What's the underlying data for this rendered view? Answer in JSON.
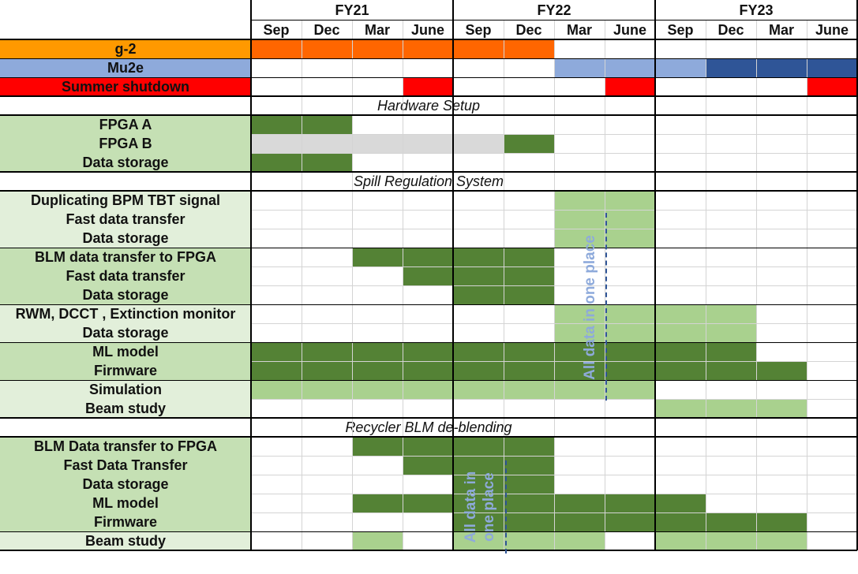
{
  "colors": {
    "orange": "#ff6600",
    "orange_label": "#ff9900",
    "mu2e_light": "#8eaadb",
    "mu2e_dark": "#2f5597",
    "red": "#ff0000",
    "green_dark": "#548235",
    "green_light": "#a9d18e",
    "gray": "#d9d9d9",
    "label_green_mid": "#c5e0b4",
    "label_green_pale": "#e2efda",
    "annotation_text": "#8eaadb"
  },
  "header": {
    "years": [
      "FY21",
      "FY22",
      "FY23"
    ],
    "months": [
      "Sep",
      "Dec",
      "Mar",
      "June",
      "Sep",
      "Dec",
      "Mar",
      "June",
      "Sep",
      "Dec",
      "Mar",
      "June"
    ]
  },
  "rows": [
    {
      "type": "task",
      "label": "g-2",
      "label_color": "orange_label",
      "cells": [
        "orange",
        "orange",
        "orange",
        "orange",
        "orange",
        "orange",
        "",
        "",
        "",
        "",
        "",
        ""
      ]
    },
    {
      "type": "task",
      "label": "Mu2e",
      "label_color": "mu2e_light",
      "cells": [
        "",
        "",
        "",
        "",
        "",
        "",
        "mu2e_light",
        "mu2e_light",
        "mu2e_light",
        "mu2e_dark",
        "mu2e_dark",
        "mu2e_dark"
      ]
    },
    {
      "type": "task",
      "label": "Summer shutdown",
      "label_color": "red",
      "cells": [
        "",
        "",
        "",
        "red",
        "",
        "",
        "",
        "red",
        "",
        "",
        "",
        "red"
      ]
    },
    {
      "type": "section",
      "label": "Hardware Setup"
    },
    {
      "type": "task",
      "label": "FPGA A",
      "label_color": "label_green_mid",
      "cells": [
        "green_dark",
        "green_dark",
        "",
        "",
        "",
        "",
        "",
        "",
        "",
        "",
        "",
        ""
      ]
    },
    {
      "type": "task",
      "label": "FPGA B",
      "label_color": "label_green_mid",
      "cells": [
        "gray",
        "gray",
        "gray",
        "gray",
        "gray",
        "green_dark",
        "",
        "",
        "",
        "",
        "",
        ""
      ]
    },
    {
      "type": "task",
      "label": "Data storage",
      "label_color": "label_green_mid",
      "cells": [
        "green_dark",
        "green_dark",
        "",
        "",
        "",
        "",
        "",
        "",
        "",
        "",
        "",
        ""
      ]
    },
    {
      "type": "section",
      "label": "Spill Regulation System"
    },
    {
      "type": "task",
      "label": "Duplicating BPM TBT signal",
      "label_color": "label_green_pale",
      "cells": [
        "",
        "",
        "",
        "",
        "",
        "",
        "green_light",
        "green_light",
        "",
        "",
        "",
        ""
      ]
    },
    {
      "type": "task",
      "label": "Fast data transfer",
      "label_color": "label_green_pale",
      "cells": [
        "",
        "",
        "",
        "",
        "",
        "",
        "green_light",
        "green_light",
        "",
        "",
        "",
        ""
      ]
    },
    {
      "type": "task",
      "label": "Data storage",
      "label_color": "label_green_pale",
      "cells": [
        "",
        "",
        "",
        "",
        "",
        "",
        "green_light",
        "green_light",
        "",
        "",
        "",
        ""
      ]
    },
    {
      "type": "task",
      "label": "BLM data transfer to FPGA",
      "label_color": "label_green_mid",
      "cells": [
        "",
        "",
        "green_dark",
        "green_dark",
        "green_dark",
        "green_dark",
        "",
        "",
        "",
        "",
        "",
        ""
      ]
    },
    {
      "type": "task",
      "label": "Fast data transfer",
      "label_color": "label_green_mid",
      "cells": [
        "",
        "",
        "",
        "green_dark",
        "green_dark",
        "green_dark",
        "",
        "",
        "",
        "",
        "",
        ""
      ]
    },
    {
      "type": "task",
      "label": "Data storage",
      "label_color": "label_green_mid",
      "cells": [
        "",
        "",
        "",
        "",
        "green_dark",
        "green_dark",
        "",
        "",
        "",
        "",
        "",
        ""
      ]
    },
    {
      "type": "task",
      "label": "RWM, DCCT , Extinction monitor",
      "label_color": "label_green_pale",
      "cells": [
        "",
        "",
        "",
        "",
        "",
        "",
        "green_light",
        "green_light",
        "green_light",
        "green_light",
        "",
        ""
      ]
    },
    {
      "type": "task",
      "label": "Data storage",
      "label_color": "label_green_pale",
      "cells": [
        "",
        "",
        "",
        "",
        "",
        "",
        "green_light",
        "green_light",
        "green_light",
        "green_light",
        "",
        ""
      ]
    },
    {
      "type": "task",
      "label": "ML model",
      "label_color": "label_green_mid",
      "cells": [
        "green_dark",
        "green_dark",
        "green_dark",
        "green_dark",
        "green_dark",
        "green_dark",
        "green_dark",
        "green_dark",
        "green_dark",
        "green_dark",
        "",
        ""
      ]
    },
    {
      "type": "task",
      "label": "Firmware",
      "label_color": "label_green_mid",
      "cells": [
        "green_dark",
        "green_dark",
        "green_dark",
        "green_dark",
        "green_dark",
        "green_dark",
        "green_dark",
        "green_dark",
        "green_dark",
        "green_dark",
        "green_dark",
        ""
      ]
    },
    {
      "type": "task",
      "label": "Simulation",
      "label_color": "label_green_pale",
      "cells": [
        "green_light",
        "green_light",
        "green_light",
        "green_light",
        "green_light",
        "green_light",
        "green_light",
        "green_light",
        "",
        "",
        "",
        ""
      ]
    },
    {
      "type": "task",
      "label": "Beam study",
      "label_color": "label_green_pale",
      "cells": [
        "",
        "",
        "",
        "",
        "",
        "",
        "",
        "",
        "green_light",
        "green_light",
        "green_light",
        ""
      ]
    },
    {
      "type": "section",
      "label": "Recycler BLM de-blending"
    },
    {
      "type": "task",
      "label": "BLM Data transfer to FPGA",
      "label_color": "label_green_mid",
      "cells": [
        "",
        "",
        "green_dark",
        "green_dark",
        "green_dark",
        "green_dark",
        "",
        "",
        "",
        "",
        "",
        ""
      ]
    },
    {
      "type": "task",
      "label": "Fast Data Transfer",
      "label_color": "label_green_mid",
      "cells": [
        "",
        "",
        "",
        "green_dark",
        "green_dark",
        "green_dark",
        "",
        "",
        "",
        "",
        "",
        ""
      ]
    },
    {
      "type": "task",
      "label": "Data storage",
      "label_color": "label_green_mid",
      "cells": [
        "",
        "",
        "",
        "",
        "green_dark",
        "green_dark",
        "",
        "",
        "",
        "",
        "",
        ""
      ]
    },
    {
      "type": "task",
      "label": "ML model",
      "label_color": "label_green_mid",
      "cells": [
        "",
        "",
        "green_dark",
        "green_dark",
        "green_dark",
        "green_dark",
        "green_dark",
        "green_dark",
        "green_dark",
        "",
        "",
        ""
      ]
    },
    {
      "type": "task",
      "label": "Firmware",
      "label_color": "label_green_mid",
      "cells": [
        "",
        "",
        "",
        "",
        "green_dark",
        "green_dark",
        "green_dark",
        "green_dark",
        "green_dark",
        "green_dark",
        "green_dark",
        ""
      ]
    },
    {
      "type": "task",
      "label": "Beam study",
      "label_color": "label_green_pale",
      "cells": [
        "",
        "",
        "green_light",
        "",
        "green_light",
        "green_light",
        "green_light",
        "",
        "green_light",
        "green_light",
        "green_light",
        ""
      ]
    }
  ],
  "annotations": [
    {
      "text": "All data in one place"
    },
    {
      "text_lines": [
        "All data in",
        "one place"
      ]
    }
  ]
}
